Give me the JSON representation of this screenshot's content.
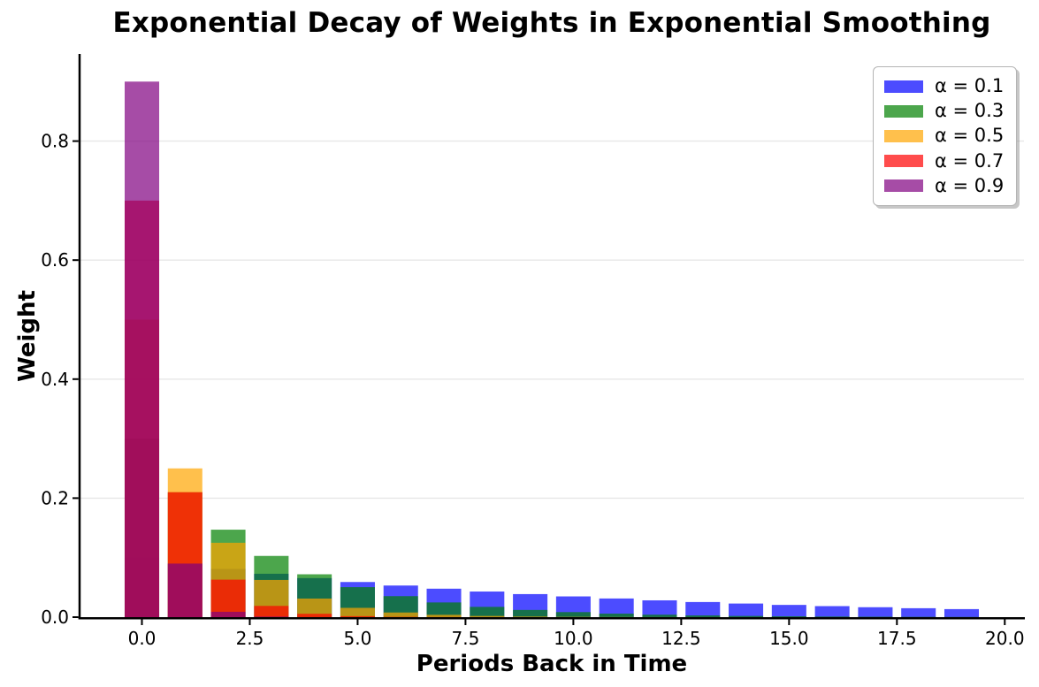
{
  "figure": {
    "background": "#ffffff"
  },
  "chart_data": {
    "type": "bar",
    "title": "Exponential Decay of Weights in Exponential Smoothing",
    "xlabel": "Periods Back in Time",
    "ylabel": "Weight",
    "x": [
      0,
      1,
      2,
      3,
      4,
      5,
      6,
      7,
      8,
      9,
      10,
      11,
      12,
      13,
      14,
      15,
      16,
      17,
      18,
      19
    ],
    "series": [
      {
        "name": "α = 0.1",
        "alpha": 0.1,
        "color": "#0000ff",
        "values": [
          0.1,
          0.09,
          0.081,
          0.0729,
          0.06561,
          0.059049,
          0.053144,
          0.04783,
          0.043047,
          0.038742,
          0.034868,
          0.031381,
          0.028243,
          0.025419,
          0.022877,
          0.020589,
          0.01853,
          0.016677,
          0.015009,
          0.013509
        ]
      },
      {
        "name": "α = 0.3",
        "alpha": 0.3,
        "color": "#008000",
        "values": [
          0.3,
          0.21,
          0.147,
          0.1029,
          0.07203,
          0.050421,
          0.035295,
          0.024706,
          0.017294,
          0.012106,
          0.008474,
          0.005932,
          0.004152,
          0.002907,
          0.002035,
          0.001424,
          0.000997,
          0.000698,
          0.000489,
          0.000342
        ]
      },
      {
        "name": "α = 0.5",
        "alpha": 0.5,
        "color": "#ffa500",
        "values": [
          0.5,
          0.25,
          0.125,
          0.0625,
          0.03125,
          0.015625,
          0.0078125,
          0.0039063,
          0.0019531,
          0.0009766,
          0.0004883,
          0.0002441,
          0.0001221,
          6.1e-05,
          3.05e-05,
          1.53e-05,
          7.6e-06,
          3.8e-06,
          1.9e-06,
          1e-06
        ]
      },
      {
        "name": "α = 0.7",
        "alpha": 0.7,
        "color": "#ff0000",
        "values": [
          0.7,
          0.21,
          0.063,
          0.0189,
          0.00567,
          0.001701,
          0.0005103,
          0.0001531,
          4.59e-05,
          1.38e-05,
          4.1e-06,
          1.2e-06,
          4e-07,
          1e-07,
          0,
          0,
          0,
          0,
          0,
          0
        ]
      },
      {
        "name": "α = 0.9",
        "alpha": 0.9,
        "color": "#800080",
        "values": [
          0.9,
          0.09,
          0.009,
          0.0009,
          9e-05,
          9e-06,
          9e-07,
          1e-07,
          0,
          0,
          0,
          0,
          0,
          0,
          0,
          0,
          0,
          0,
          0,
          0
        ]
      }
    ],
    "overlay": true,
    "bar_width": 0.8,
    "bar_opacity": 0.7,
    "xlim": [
      -1.445,
      20.445
    ],
    "ylim": [
      0,
      0.945
    ],
    "xticks": {
      "values": [
        0,
        2.5,
        5,
        7.5,
        10,
        12.5,
        15,
        17.5,
        20
      ],
      "labels": [
        "0.0",
        "2.5",
        "5.0",
        "7.5",
        "10.0",
        "12.5",
        "15.0",
        "17.5",
        "20.0"
      ]
    },
    "yticks": {
      "values": [
        0,
        0.2,
        0.4,
        0.6,
        0.8
      ],
      "labels": [
        "0.0",
        "0.2",
        "0.4",
        "0.6",
        "0.8"
      ]
    },
    "grid": {
      "axis": "y",
      "color": "#e7e7e7",
      "linewidth": 1.4
    },
    "axis_color": "#000000",
    "tick_label_color": "#000000",
    "legend": {
      "position": "upper right",
      "swatch_opacity": 0.7,
      "entries": [
        "α = 0.1",
        "α = 0.3",
        "α = 0.5",
        "α = 0.7",
        "α = 0.9"
      ]
    }
  }
}
